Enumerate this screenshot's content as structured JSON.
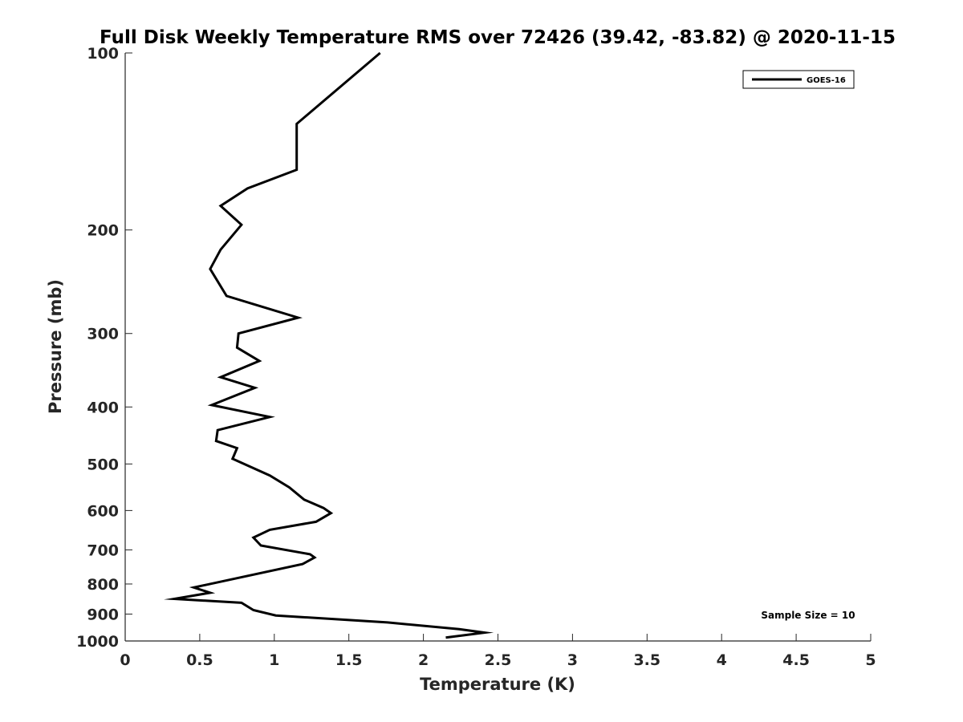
{
  "chart_data": {
    "type": "line",
    "title": "Full Disk Weekly Temperature RMS over 72426 (39.42, -83.82) @ 2020-11-15",
    "xlabel": "Temperature (K)",
    "ylabel": "Pressure (mb)",
    "xlim": [
      0,
      5
    ],
    "ylim": [
      100,
      1000
    ],
    "yscale": "log",
    "y_reversed": true,
    "grid": false,
    "legend_position": "top-right",
    "xticks": [
      0,
      0.5,
      1,
      1.5,
      2,
      2.5,
      3,
      3.5,
      4,
      4.5,
      5
    ],
    "xtick_labels": [
      "0",
      "0.5",
      "1",
      "1.5",
      "2",
      "2.5",
      "3",
      "3.5",
      "4",
      "4.5",
      "5"
    ],
    "yticks": [
      100,
      200,
      300,
      400,
      500,
      600,
      700,
      800,
      900,
      1000
    ],
    "ytick_labels": [
      "100",
      "200",
      "300",
      "400",
      "500",
      "600",
      "700",
      "800",
      "900",
      "1000"
    ],
    "series": [
      {
        "name": "GOES-16",
        "color": "#000000",
        "x": [
          1.71,
          1.15,
          1.15,
          0.82,
          0.64,
          0.78,
          0.64,
          0.57,
          0.68,
          1.16,
          0.76,
          0.75,
          0.9,
          0.64,
          0.87,
          0.58,
          0.97,
          0.62,
          0.61,
          0.75,
          0.72,
          0.97,
          1.1,
          1.2,
          1.33,
          1.38,
          1.28,
          0.97,
          0.86,
          0.91,
          1.24,
          1.27,
          1.19,
          0.46,
          0.57,
          0.33,
          0.78,
          0.86,
          1.01,
          1.76,
          2.24,
          2.41,
          2.15
        ],
        "y": [
          100,
          132,
          158,
          170,
          182,
          196,
          216,
          233,
          259,
          282,
          300,
          317,
          334,
          356,
          371,
          397,
          416,
          438,
          457,
          470,
          490,
          523,
          548,
          575,
          594,
          606,
          627,
          647,
          667,
          688,
          712,
          721,
          740,
          811,
          828,
          848,
          861,
          886,
          905,
          930,
          955,
          968,
          987
        ]
      }
    ],
    "annotations": [
      "Sample Size = 10"
    ]
  }
}
